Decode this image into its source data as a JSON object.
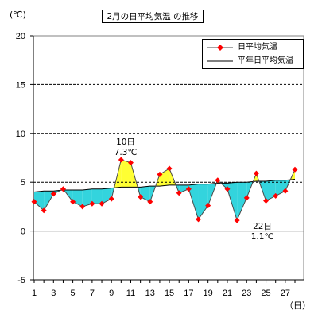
{
  "title": "2月の日平均気温 の推移",
  "units": {
    "y": "(℃)",
    "x": "（日）"
  },
  "legend": [
    {
      "label": "日平均気温",
      "series": 0
    },
    {
      "label": "平年日平均気温",
      "series": 1
    }
  ],
  "annotations": [
    {
      "day": 10,
      "line1": "10日",
      "line2": "7.3℃"
    },
    {
      "day": 22,
      "line1": "22日",
      "line2": "1.1℃"
    }
  ],
  "colors": {
    "actual_line": "#4a4a4a",
    "marker": "#ff0000",
    "normal_line": "#000000",
    "fill_below_normal": "#33d4dd",
    "fill_above_normal": "#ffff33",
    "grid": "#000000"
  },
  "chart_data": {
    "type": "line",
    "title": "2月の日平均気温 の推移",
    "xlabel": "（日）",
    "ylabel": "(℃)",
    "x": [
      1,
      2,
      3,
      4,
      5,
      6,
      7,
      8,
      9,
      10,
      11,
      12,
      13,
      14,
      15,
      16,
      17,
      18,
      19,
      20,
      21,
      22,
      23,
      24,
      25,
      26,
      27,
      28
    ],
    "xticks": [
      1,
      3,
      5,
      7,
      9,
      11,
      13,
      15,
      17,
      19,
      21,
      23,
      25,
      27
    ],
    "ylim": [
      -5,
      20
    ],
    "yticks": [
      -5,
      0,
      5,
      10,
      15,
      20
    ],
    "grid": "dashed horizontal at 5, 10, 15",
    "legend_position": "top-right",
    "series": [
      {
        "name": "日平均気温",
        "marker": "diamond",
        "values": [
          3.0,
          2.1,
          3.8,
          4.3,
          3.0,
          2.5,
          2.8,
          2.8,
          3.3,
          7.3,
          7.0,
          3.5,
          3.0,
          5.8,
          6.4,
          3.9,
          4.3,
          1.2,
          2.6,
          5.2,
          4.3,
          1.1,
          3.4,
          5.9,
          3.1,
          3.6,
          4.1,
          6.3
        ]
      },
      {
        "name": "平年日平均気温",
        "marker": "none",
        "values": [
          4.0,
          4.1,
          4.1,
          4.2,
          4.2,
          4.2,
          4.3,
          4.3,
          4.4,
          4.5,
          4.5,
          4.5,
          4.6,
          4.6,
          4.7,
          4.7,
          4.7,
          4.8,
          4.8,
          4.9,
          4.9,
          5.0,
          5.0,
          5.1,
          5.1,
          5.2,
          5.2,
          5.3
        ]
      }
    ]
  }
}
